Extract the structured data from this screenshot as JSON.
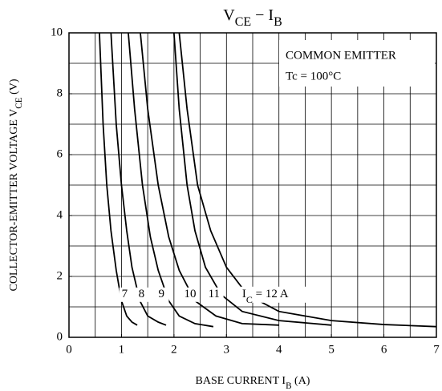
{
  "chart_data": {
    "type": "line",
    "title": [
      "V",
      "CE",
      " − I",
      "B"
    ],
    "xlabel": [
      "BASE CURRENT  I",
      "B",
      "  (A)"
    ],
    "ylabel": [
      "COLLECTOR-EMITTER VOLTAGE  V",
      "CE",
      "  (V)"
    ],
    "annotations": [
      "COMMON EMITTER",
      "Tc = 100°C"
    ],
    "xlim": [
      0,
      7
    ],
    "ylim": [
      0,
      10
    ],
    "xticks": [
      0,
      1,
      2,
      3,
      4,
      5,
      6,
      7
    ],
    "yticks": [
      0,
      2,
      4,
      6,
      8,
      10
    ],
    "xgrid": [
      0.5,
      1,
      1.5,
      2,
      2.5,
      3,
      3.5,
      4,
      4.5,
      5,
      5.5,
      6,
      6.5
    ],
    "ygrid": [
      1,
      2,
      3,
      4,
      5,
      6,
      7,
      8,
      9
    ],
    "color": "#000000",
    "series": [
      {
        "name": "7",
        "x": [
          0.58,
          0.65,
          0.72,
          0.8,
          0.9,
          1.0,
          1.1,
          1.2,
          1.3
        ],
        "values": [
          10,
          7,
          5,
          3.5,
          2.2,
          1.2,
          0.7,
          0.5,
          0.4
        ]
      },
      {
        "name": "8",
        "x": [
          0.8,
          0.9,
          1.0,
          1.1,
          1.2,
          1.35,
          1.5,
          1.7,
          1.85
        ],
        "values": [
          10,
          7,
          5,
          3.5,
          2.3,
          1.2,
          0.7,
          0.5,
          0.4
        ]
      },
      {
        "name": "9",
        "x": [
          1.13,
          1.25,
          1.4,
          1.55,
          1.7,
          1.9,
          2.1,
          2.4,
          2.75
        ],
        "values": [
          10,
          7.5,
          5,
          3.3,
          2.2,
          1.2,
          0.7,
          0.45,
          0.35
        ]
      },
      {
        "name": "10",
        "x": [
          1.36,
          1.5,
          1.7,
          1.9,
          2.1,
          2.4,
          2.8,
          3.3,
          4.0
        ],
        "values": [
          10,
          7.5,
          5,
          3.3,
          2.2,
          1.2,
          0.7,
          0.45,
          0.4
        ]
      },
      {
        "name": "11",
        "x": [
          2.0,
          2.1,
          2.25,
          2.4,
          2.6,
          2.9,
          3.3,
          4.0,
          5.0
        ],
        "values": [
          10,
          7.5,
          5,
          3.5,
          2.3,
          1.4,
          0.85,
          0.55,
          0.4
        ]
      },
      {
        "label": [
          "I",
          "C",
          " = 12 A"
        ],
        "x": [
          2.1,
          2.25,
          2.45,
          2.7,
          3.0,
          3.4,
          4.0,
          5.0,
          6.0,
          7.0
        ],
        "values": [
          10,
          7.5,
          5,
          3.5,
          2.3,
          1.4,
          0.85,
          0.55,
          0.42,
          0.35
        ]
      }
    ]
  }
}
